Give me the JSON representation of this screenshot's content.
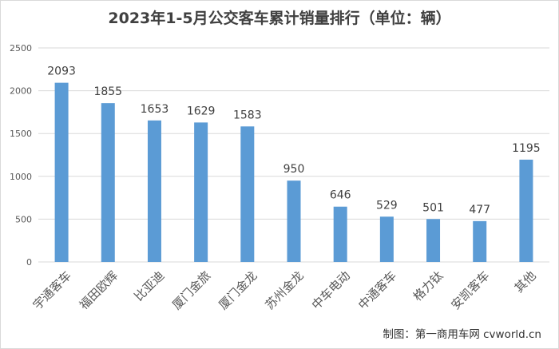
{
  "chart_data": {
    "type": "bar",
    "title": "2023年1-5月公交客车累计销量排行（单位：辆）",
    "categories": [
      "宇通客车",
      "福田欧辉",
      "比亚迪",
      "厦门金旅",
      "厦门金龙",
      "苏州金龙",
      "中车电动",
      "中通客车",
      "格力钛",
      "安凯客车",
      "其他"
    ],
    "values": [
      2093,
      1855,
      1653,
      1629,
      1583,
      950,
      646,
      529,
      501,
      477,
      1195
    ],
    "ylim": [
      0,
      2500
    ],
    "yticks": [
      0,
      500,
      1000,
      1500,
      2000,
      2500
    ],
    "grid": true,
    "legend": "none",
    "colors": {
      "bar": "#5b9bd5",
      "grid": "#d9d9d9",
      "axis_text": "#595959",
      "label_text": "#404040"
    }
  },
  "credit": "制图：第一商用车网 cvworld.cn"
}
